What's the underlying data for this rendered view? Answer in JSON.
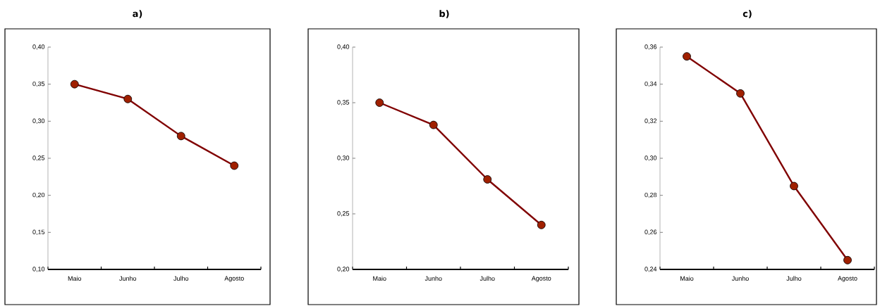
{
  "chart_data": [
    {
      "type": "line",
      "title": "a)",
      "categories": [
        "Maio",
        "Junho",
        "Julho",
        "Agosto"
      ],
      "values": [
        0.35,
        0.33,
        0.28,
        0.24
      ],
      "color": "#800000",
      "marker": "circle",
      "ylim": [
        0.1,
        0.4
      ],
      "yticks": [
        {
          "value": 0.1,
          "label": "0,10"
        },
        {
          "value": 0.15,
          "label": "0,15"
        },
        {
          "value": 0.2,
          "label": "0,20"
        },
        {
          "value": 0.25,
          "label": "0,25"
        },
        {
          "value": 0.3,
          "label": "0,30"
        },
        {
          "value": 0.35,
          "label": "0,35"
        },
        {
          "value": 0.4,
          "label": "0,40"
        }
      ],
      "grid": false
    },
    {
      "type": "line",
      "title": "b)",
      "categories": [
        "Maio",
        "Junho",
        "Julho",
        "Agosto"
      ],
      "values": [
        0.35,
        0.33,
        0.281,
        0.24
      ],
      "color": "#800000",
      "marker": "circle",
      "ylim": [
        0.2,
        0.4
      ],
      "yticks": [
        {
          "value": 0.2,
          "label": "0,20"
        },
        {
          "value": 0.25,
          "label": "0,25"
        },
        {
          "value": 0.3,
          "label": "0,30"
        },
        {
          "value": 0.35,
          "label": "0,35"
        },
        {
          "value": 0.4,
          "label": "0,40"
        }
      ],
      "grid": false
    },
    {
      "type": "line",
      "title": "c)",
      "categories": [
        "Maio",
        "Junho",
        "Julho",
        "Agosto"
      ],
      "values": [
        0.355,
        0.335,
        0.285,
        0.245
      ],
      "color": "#800000",
      "marker": "circle",
      "ylim": [
        0.24,
        0.36
      ],
      "yticks": [
        {
          "value": 0.24,
          "label": "0,24"
        },
        {
          "value": 0.26,
          "label": "0,26"
        },
        {
          "value": 0.28,
          "label": "0,28"
        },
        {
          "value": 0.3,
          "label": "0,30"
        },
        {
          "value": 0.32,
          "label": "0,32"
        },
        {
          "value": 0.34,
          "label": "0,34"
        },
        {
          "value": 0.36,
          "label": "0,36"
        }
      ],
      "grid": false
    }
  ]
}
